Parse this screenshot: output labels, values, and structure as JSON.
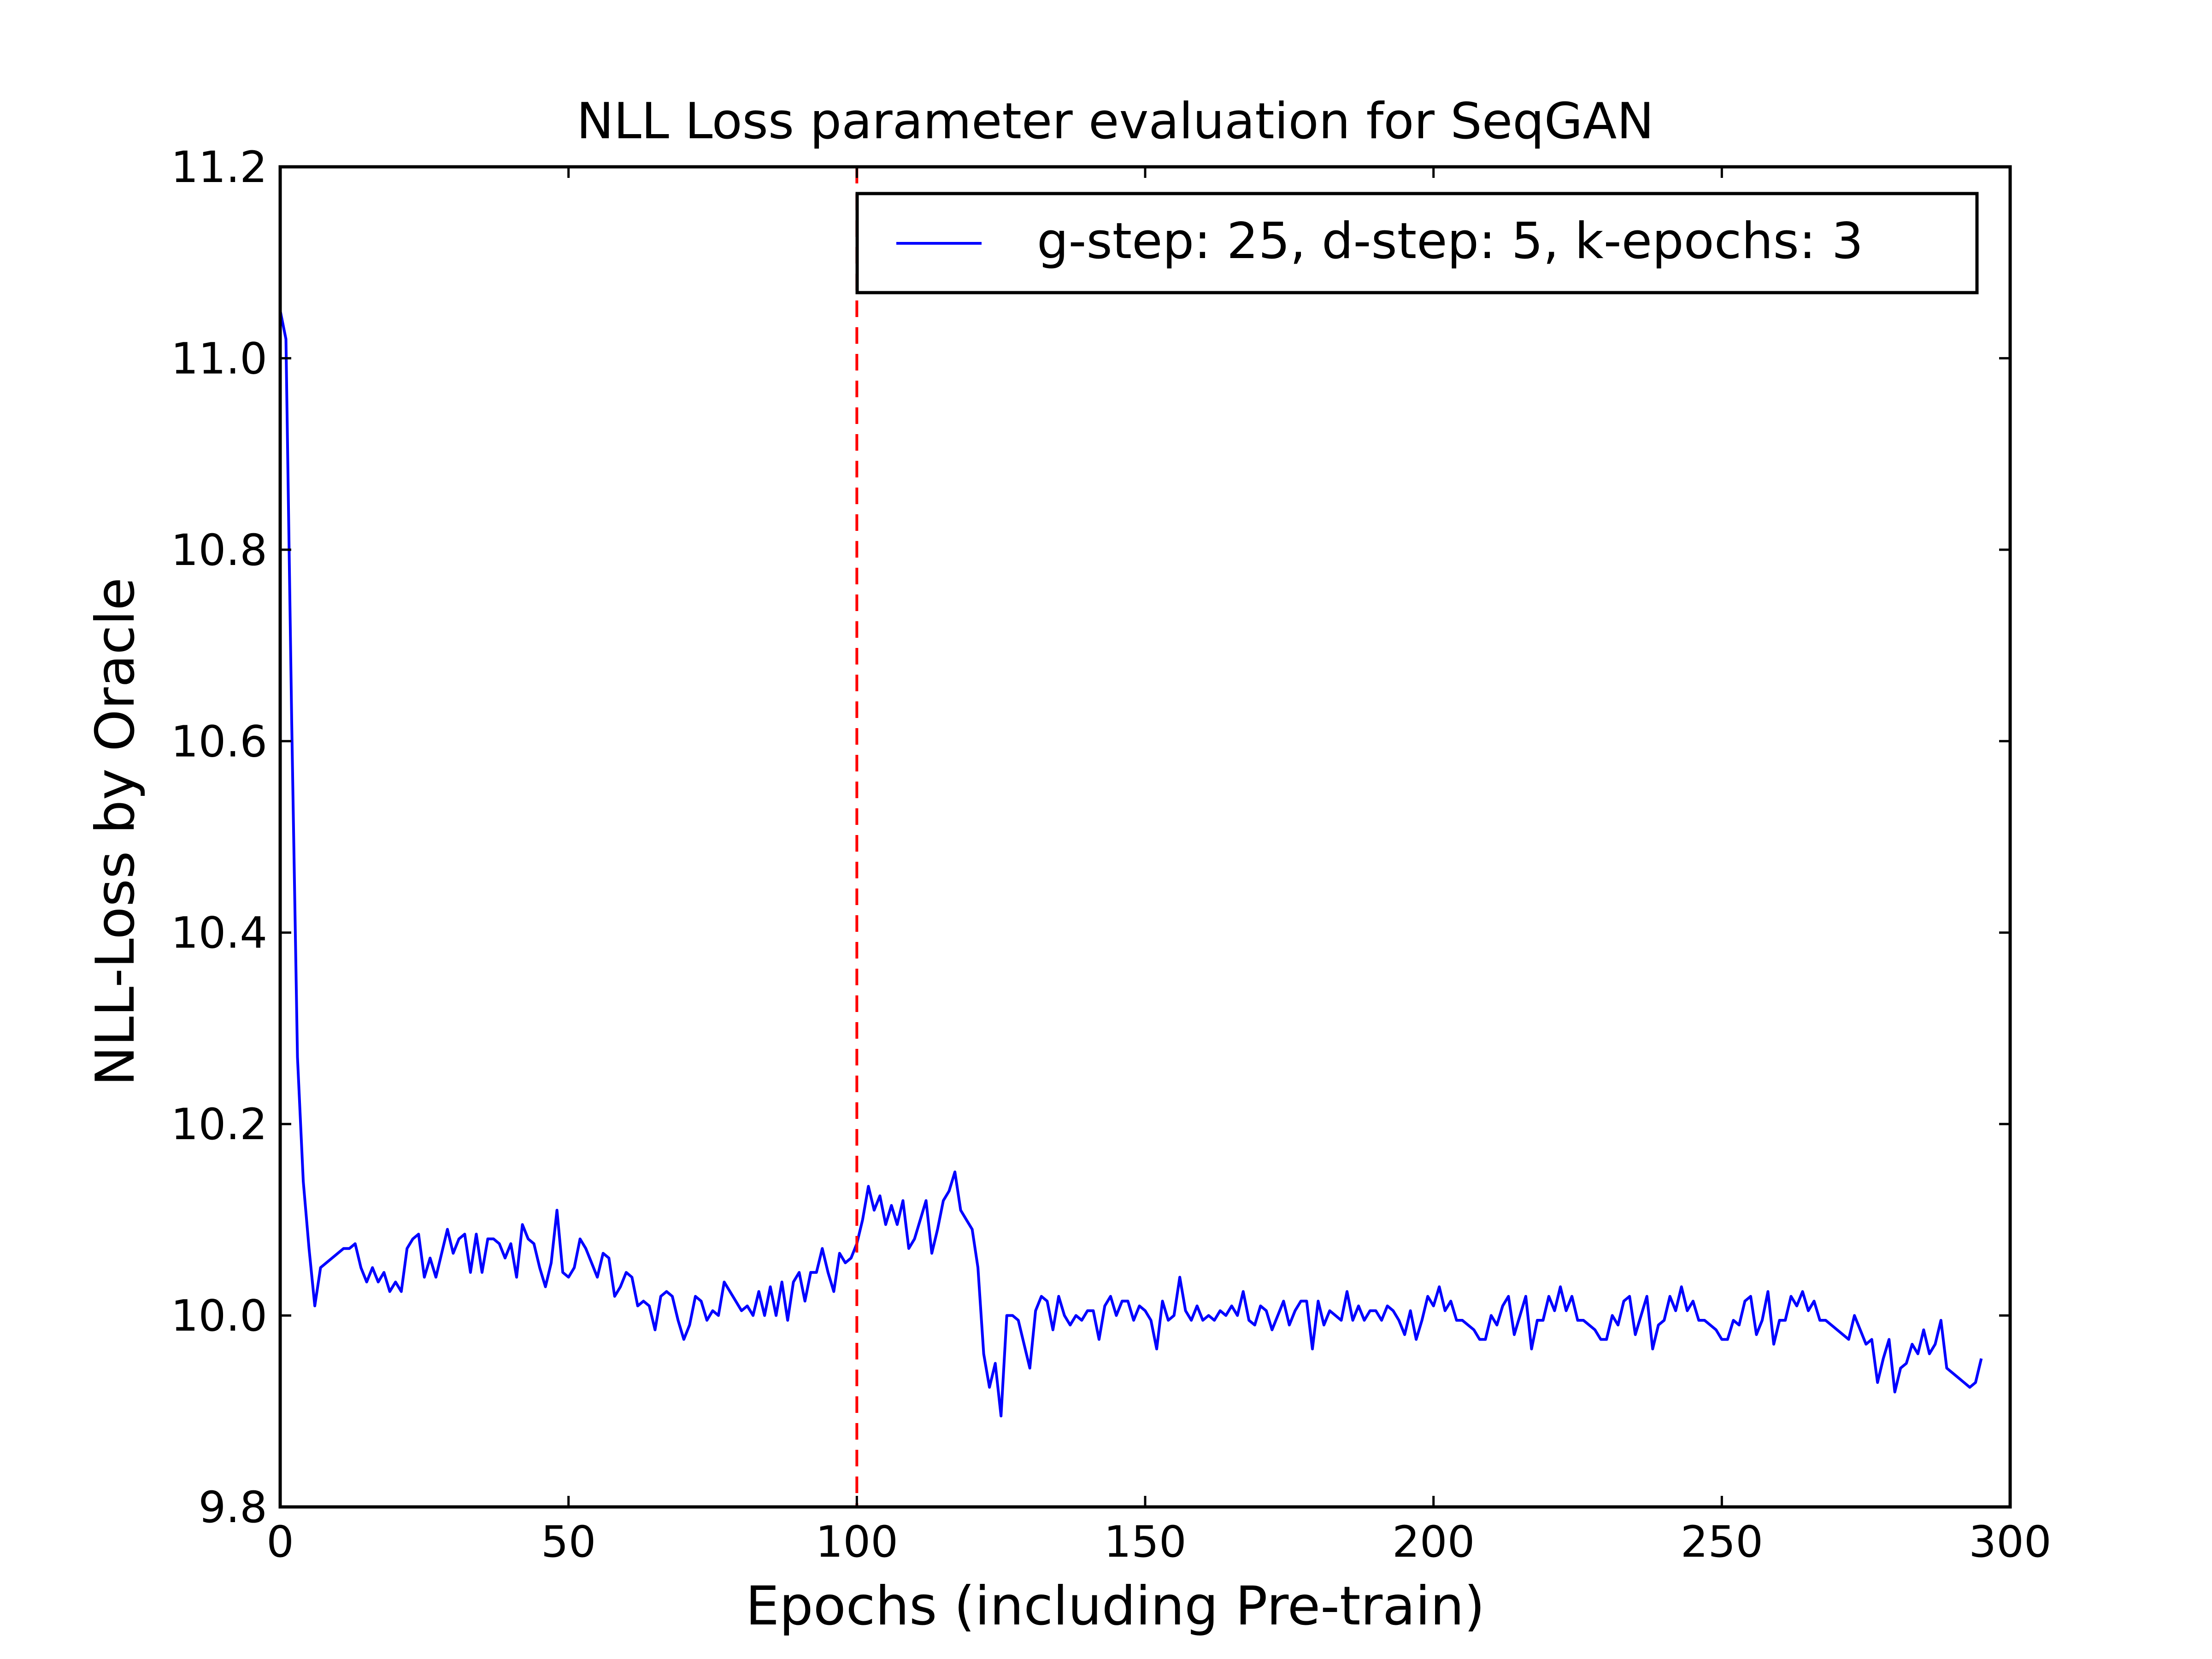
{
  "chart_data": {
    "type": "line",
    "title": "NLL Loss parameter evaluation for SeqGAN",
    "xlabel": "Epochs (including Pre-train)",
    "ylabel": "NLL-Loss by Oracle",
    "xlim": [
      0,
      300
    ],
    "ylim": [
      9.8,
      11.2
    ],
    "xticks": [
      0,
      50,
      100,
      150,
      200,
      250,
      300
    ],
    "xtick_labels": [
      "0",
      "50",
      "100",
      "150",
      "200",
      "250",
      "300"
    ],
    "yticks": [
      9.8,
      10.0,
      10.2,
      10.4,
      10.6,
      10.8,
      11.0,
      11.2
    ],
    "ytick_labels": [
      "9.8",
      "10.0",
      "10.2",
      "10.4",
      "10.6",
      "10.8",
      "11.0",
      "11.2"
    ],
    "grid": false,
    "legend_position": "top-right",
    "vline": {
      "x": 100,
      "color": "#ff0000",
      "style": "dashed"
    },
    "series": [
      {
        "name": "g-step: 25, d-step: 5, k-epochs: 3",
        "color": "#0000ff",
        "x_start": 0,
        "x_step": 1,
        "values": [
          11.05,
          11.02,
          10.62,
          10.27,
          10.14,
          10.07,
          10.01,
          10.05,
          10.055,
          10.06,
          10.065,
          10.07,
          10.07,
          10.075,
          10.05,
          10.035,
          10.05,
          10.035,
          10.045,
          10.025,
          10.035,
          10.025,
          10.07,
          10.08,
          10.085,
          10.04,
          10.06,
          10.04,
          10.065,
          10.09,
          10.065,
          10.08,
          10.085,
          10.045,
          10.085,
          10.045,
          10.08,
          10.08,
          10.075,
          10.06,
          10.075,
          10.04,
          10.095,
          10.08,
          10.075,
          10.05,
          10.03,
          10.055,
          10.11,
          10.045,
          10.04,
          10.05,
          10.08,
          10.07,
          10.055,
          10.04,
          10.065,
          10.06,
          10.02,
          10.03,
          10.045,
          10.04,
          10.01,
          10.015,
          10.01,
          9.985,
          10.02,
          10.025,
          10.02,
          9.995,
          9.975,
          9.99,
          10.02,
          10.015,
          9.995,
          10.005,
          10.0,
          10.035,
          10.025,
          10.015,
          10.005,
          10.01,
          10.0,
          10.025,
          10.0,
          10.03,
          10.0,
          10.035,
          9.995,
          10.035,
          10.045,
          10.015,
          10.045,
          10.045,
          10.07,
          10.045,
          10.025,
          10.065,
          10.055,
          10.06,
          10.075,
          10.1,
          10.135,
          10.11,
          10.125,
          10.095,
          10.115,
          10.095,
          10.12,
          10.07,
          10.08,
          10.1,
          10.12,
          10.065,
          10.09,
          10.12,
          10.13,
          10.15,
          10.11,
          10.1,
          10.09,
          10.05,
          9.96,
          9.925,
          9.95,
          9.895,
          10.0,
          10.0,
          9.995,
          9.97,
          9.945,
          10.005,
          10.02,
          10.015,
          9.985,
          10.02,
          10.0,
          9.99,
          10.0,
          9.995,
          10.005,
          10.005,
          9.975,
          10.01,
          10.02,
          10.0,
          10.015,
          10.015,
          9.995,
          10.01,
          10.005,
          9.995,
          9.965,
          10.015,
          9.995,
          10.0,
          10.04,
          10.005,
          9.995,
          10.01,
          9.995,
          10.0,
          9.995,
          10.005,
          10.0,
          10.01,
          10.0,
          10.025,
          9.995,
          9.99,
          10.01,
          10.005,
          9.985,
          10.0,
          10.015,
          9.99,
          10.005,
          10.015,
          10.015,
          9.965,
          10.015,
          9.99,
          10.005,
          10.0,
          9.995,
          10.025,
          9.995,
          10.01,
          9.995,
          10.005,
          10.005,
          9.995,
          10.01,
          10.005,
          9.995,
          9.98,
          10.005,
          9.975,
          9.995,
          10.02,
          10.01,
          10.03,
          10.005,
          10.015,
          9.995,
          9.995,
          9.99,
          9.985,
          9.975,
          9.975,
          10.0,
          9.99,
          10.01,
          10.02,
          9.98,
          10.0,
          10.02,
          9.965,
          9.995,
          9.995,
          10.02,
          10.005,
          10.03,
          10.005,
          10.02,
          9.995,
          9.995,
          9.99,
          9.985,
          9.975,
          9.975,
          10.0,
          9.99,
          10.015,
          10.02,
          9.98,
          10.0,
          10.02,
          9.965,
          9.99,
          9.995,
          10.02,
          10.005,
          10.03,
          10.005,
          10.015,
          9.995,
          9.995,
          9.99,
          9.985,
          9.975,
          9.975,
          9.995,
          9.99,
          10.015,
          10.02,
          9.98,
          9.995,
          10.025,
          9.97,
          9.995,
          9.995,
          10.02,
          10.01,
          10.025,
          10.005,
          10.015,
          9.995,
          9.995,
          9.99,
          9.985,
          9.98,
          9.975,
          10.0,
          9.985,
          9.97,
          9.975,
          9.93,
          9.955,
          9.975,
          9.92,
          9.945,
          9.95,
          9.97,
          9.96,
          9.985,
          9.96,
          9.97,
          9.995,
          9.945,
          9.94,
          9.935,
          9.93,
          9.925,
          9.93,
          9.955
        ]
      }
    ]
  }
}
